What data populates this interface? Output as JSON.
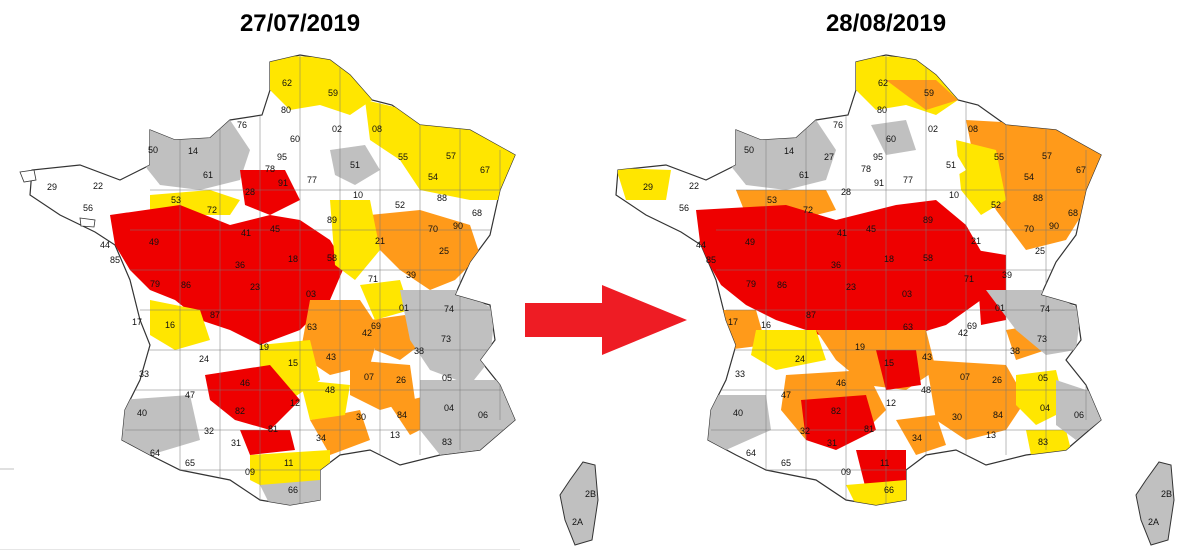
{
  "maps": [
    {
      "date": "27/07/2019",
      "labels": [
        "62",
        "59",
        "80",
        "76",
        "50",
        "14",
        "60",
        "02",
        "08",
        "61",
        "95",
        "78",
        "91",
        "77",
        "51",
        "55",
        "57",
        "54",
        "67",
        "29",
        "22",
        "56",
        "53",
        "72",
        "28",
        "45",
        "10",
        "52",
        "88",
        "68",
        "44",
        "49",
        "41",
        "89",
        "21",
        "70",
        "90",
        "85",
        "79",
        "86",
        "36",
        "18",
        "58",
        "71",
        "25",
        "39",
        "17",
        "16",
        "87",
        "23",
        "03",
        "01",
        "74",
        "73",
        "69",
        "42",
        "63",
        "19",
        "15",
        "43",
        "38",
        "33",
        "47",
        "46",
        "24",
        "48",
        "07",
        "26",
        "05",
        "40",
        "82",
        "12",
        "04",
        "06",
        "84",
        "13",
        "83",
        "32",
        "64",
        "65",
        "31",
        "81",
        "34",
        "30",
        "09",
        "11",
        "66",
        "2B",
        "2A"
      ],
      "colors": {
        "no_restriction": "#ffffff",
        "vigilance": "#c0c0c0",
        "alert": "#ffe600",
        "reinforced_alert": "#ff9a1a",
        "crisis": "#ee0000"
      }
    },
    {
      "date": "28/08/2019",
      "labels": [
        "62",
        "59",
        "80",
        "76",
        "50",
        "14",
        "60",
        "02",
        "08",
        "61",
        "27",
        "95",
        "78",
        "91",
        "77",
        "51",
        "55",
        "57",
        "54",
        "67",
        "29",
        "22",
        "56",
        "53",
        "72",
        "28",
        "45",
        "10",
        "52",
        "88",
        "68",
        "44",
        "49",
        "41",
        "89",
        "21",
        "70",
        "90",
        "85",
        "79",
        "86",
        "36",
        "18",
        "58",
        "71",
        "25",
        "39",
        "17",
        "16",
        "87",
        "23",
        "03",
        "01",
        "74",
        "73",
        "69",
        "42",
        "63",
        "19",
        "15",
        "43",
        "38",
        "33",
        "47",
        "46",
        "24",
        "48",
        "07",
        "26",
        "05",
        "40",
        "82",
        "12",
        "04",
        "06",
        "84",
        "13",
        "83",
        "32",
        "64",
        "65",
        "31",
        "81",
        "34",
        "30",
        "09",
        "11",
        "66",
        "2B",
        "2A"
      ]
    }
  ]
}
